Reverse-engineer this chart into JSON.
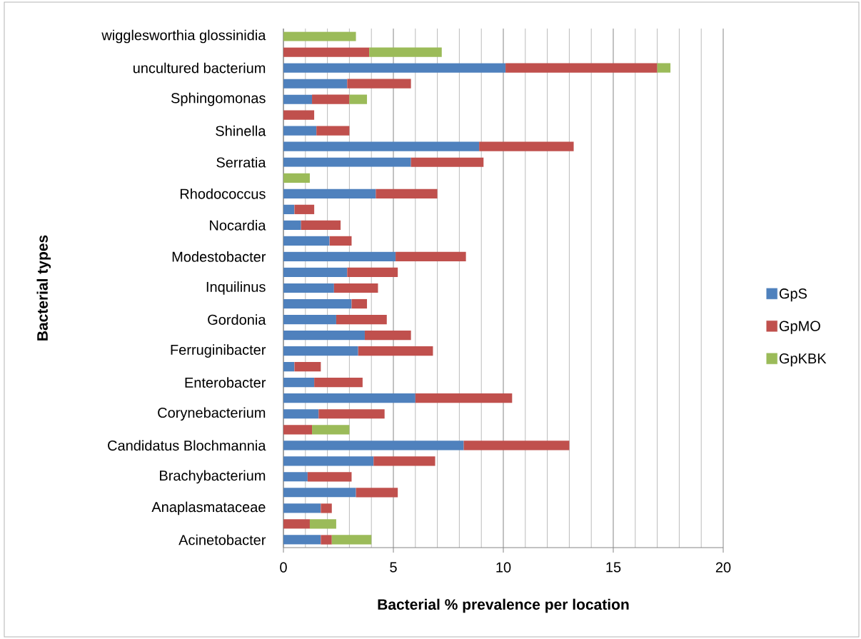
{
  "chart_data": {
    "type": "bar",
    "orientation": "horizontal",
    "stacked": true,
    "xlabel": "Bacterial % prevalence per location",
    "ylabel": "Bacterial types",
    "categories": [
      "wigglesworthia glossinidia",
      null,
      "uncultured bacterium",
      null,
      "Sphingomonas",
      null,
      "Shinella",
      null,
      "Serratia",
      null,
      "Rhodococcus",
      null,
      "Nocardia",
      null,
      "Modestobacter",
      null,
      "Inquilinus",
      null,
      "Gordonia",
      null,
      "Ferruginibacter",
      null,
      "Enterobacter",
      null,
      "Corynebacterium",
      null,
      "Candidatus Blochmannia",
      null,
      "Brachybacterium",
      null,
      "Anaplasmataceae",
      null,
      "Acinetobacter"
    ],
    "series": [
      {
        "name": "GpS",
        "color": "#4f81bd",
        "values": [
          null,
          null,
          10.1,
          2.9,
          1.3,
          null,
          1.5,
          8.9,
          5.8,
          null,
          4.2,
          0.5,
          0.8,
          2.1,
          5.1,
          2.9,
          2.3,
          3.1,
          2.4,
          3.7,
          3.4,
          0.5,
          1.4,
          6.0,
          1.6,
          null,
          8.2,
          4.1,
          1.1,
          3.3,
          1.7,
          null,
          1.7
        ]
      },
      {
        "name": "GpMO",
        "color": "#c0504d",
        "values": [
          null,
          3.9,
          6.9,
          2.9,
          1.7,
          1.4,
          1.5,
          4.3,
          3.3,
          null,
          2.8,
          0.9,
          1.8,
          1.0,
          3.2,
          2.3,
          2.0,
          0.7,
          2.3,
          2.1,
          3.4,
          1.2,
          2.2,
          4.4,
          3.0,
          1.3,
          4.8,
          2.8,
          2.0,
          1.9,
          0.5,
          1.2,
          0.5
        ]
      },
      {
        "name": "GpKBK",
        "color": "#9bbb59",
        "values": [
          3.3,
          3.3,
          0.6,
          null,
          0.8,
          null,
          null,
          null,
          null,
          1.2,
          null,
          null,
          null,
          null,
          null,
          null,
          null,
          null,
          null,
          null,
          null,
          null,
          null,
          null,
          null,
          1.7,
          null,
          null,
          null,
          null,
          null,
          1.2,
          1.8
        ]
      }
    ],
    "xlim": [
      0,
      20
    ],
    "xticks": [
      0,
      5,
      10,
      15,
      20
    ],
    "grid": "x",
    "legend": "right"
  }
}
